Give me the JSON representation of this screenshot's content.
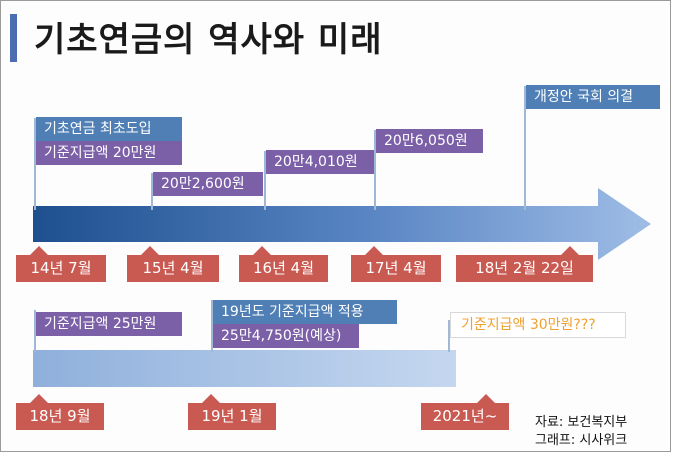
{
  "title": "기초연금의 역사와 미래",
  "timeline1": {
    "labels": [
      {
        "key": "intro",
        "text": "기초연금 최초도입"
      },
      {
        "key": "amount14",
        "text": "기준지급액 20만원"
      },
      {
        "key": "amount15",
        "text": "20만2,600원"
      },
      {
        "key": "amount16",
        "text": "20만4,010원"
      },
      {
        "key": "amount17",
        "text": "20만6,050원"
      },
      {
        "key": "assembly",
        "text": "개정안 국회 의결"
      }
    ],
    "dates": [
      "14년 7월",
      "15년 4월",
      "16년 4월",
      "17년 4월",
      "18년 2월 22일"
    ]
  },
  "timeline2": {
    "labels": [
      {
        "key": "amount18",
        "text": "기준지급액 25만원"
      },
      {
        "key": "apply19",
        "text": "19년도 기준지급액 적용"
      },
      {
        "key": "expect19",
        "text": "25만4,750원(예상)"
      },
      {
        "key": "future",
        "text": "기준지급액 30만원???"
      }
    ],
    "dates": [
      "18년 9월",
      "19년 1월",
      "2021년~"
    ]
  },
  "credits": {
    "source": "자료: 보건복지부",
    "graphic": "그래프: 시사위크"
  },
  "colors": {
    "title_accent": "#4a6eb0",
    "blue_label": "#4f7fb5",
    "purple_label": "#7b60a8",
    "date_tag": "#c85a52",
    "future_text": "#f0a030"
  }
}
